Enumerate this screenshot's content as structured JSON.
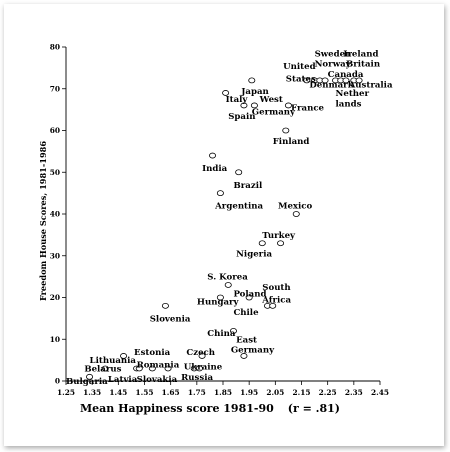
{
  "chart_data": {
    "type": "scatter",
    "xlabel": "Mean Happiness score 1981-90",
    "xlabel_suffix": "(r = .81)",
    "ylabel": "Freedom House Scores, 1981-1986",
    "xlim": [
      1.25,
      2.45
    ],
    "ylim": [
      0,
      80
    ],
    "xticks": [
      "1.25",
      "1.35",
      "1.45",
      "1.55",
      "1.65",
      "1.75",
      "1.85",
      "1.95",
      "2.05",
      "2.15",
      "2.25",
      "2.35",
      "2.45"
    ],
    "yticks": [
      "0",
      "10",
      "20",
      "30",
      "40",
      "50",
      "60",
      "70",
      "80"
    ],
    "points": [
      {
        "x": 1.34,
        "y": 1
      },
      {
        "x": 1.4,
        "y": 3
      },
      {
        "x": 1.47,
        "y": 6
      },
      {
        "x": 1.52,
        "y": 3
      },
      {
        "x": 1.53,
        "y": 3
      },
      {
        "x": 1.58,
        "y": 3
      },
      {
        "x": 1.64,
        "y": 3
      },
      {
        "x": 1.63,
        "y": 18
      },
      {
        "x": 1.74,
        "y": 3
      },
      {
        "x": 1.76,
        "y": 3
      },
      {
        "x": 1.77,
        "y": 6
      },
      {
        "x": 1.81,
        "y": 54
      },
      {
        "x": 1.84,
        "y": 20
      },
      {
        "x": 1.84,
        "y": 45
      },
      {
        "x": 1.86,
        "y": 69
      },
      {
        "x": 1.87,
        "y": 23
      },
      {
        "x": 1.89,
        "y": 12
      },
      {
        "x": 1.91,
        "y": 50
      },
      {
        "x": 1.93,
        "y": 6
      },
      {
        "x": 1.93,
        "y": 66
      },
      {
        "x": 1.95,
        "y": 20
      },
      {
        "x": 1.96,
        "y": 72
      },
      {
        "x": 1.97,
        "y": 66
      },
      {
        "x": 2.0,
        "y": 33
      },
      {
        "x": 2.02,
        "y": 18
      },
      {
        "x": 2.04,
        "y": 18
      },
      {
        "x": 2.07,
        "y": 33
      },
      {
        "x": 2.09,
        "y": 60
      },
      {
        "x": 2.1,
        "y": 66
      },
      {
        "x": 2.13,
        "y": 40
      },
      {
        "x": 2.17,
        "y": 72
      },
      {
        "x": 2.2,
        "y": 72
      },
      {
        "x": 2.22,
        "y": 72
      },
      {
        "x": 2.24,
        "y": 72
      },
      {
        "x": 2.28,
        "y": 72
      },
      {
        "x": 2.3,
        "y": 72
      },
      {
        "x": 2.32,
        "y": 72
      },
      {
        "x": 2.35,
        "y": 72
      },
      {
        "x": 2.37,
        "y": 72
      }
    ],
    "annotations": [
      {
        "text": "Bulgaria",
        "x": 1.25,
        "y": 0
      },
      {
        "text": "Belarus",
        "x": 1.32,
        "y": 3
      },
      {
        "text": "Latvia",
        "x": 1.41,
        "y": 0.5
      },
      {
        "text": "Lithuania",
        "x": 1.34,
        "y": 5
      },
      {
        "text": "Estonia",
        "x": 1.51,
        "y": 7
      },
      {
        "text": "Romania",
        "x": 1.52,
        "y": 4
      },
      {
        "text": "Slovakia",
        "x": 1.52,
        "y": 0.5
      },
      {
        "text": "Czech",
        "x": 1.71,
        "y": 7
      },
      {
        "text": "Ukraine",
        "x": 1.7,
        "y": 3.5
      },
      {
        "text": "Russia",
        "x": 1.69,
        "y": 1
      },
      {
        "text": "Slovenia",
        "x": 1.57,
        "y": 15
      },
      {
        "text": "China",
        "x": 1.79,
        "y": 11.5
      },
      {
        "text": "East",
        "x": 1.9,
        "y": 10
      },
      {
        "text": "Germany",
        "x": 1.88,
        "y": 7.5
      },
      {
        "text": "Hungary",
        "x": 1.75,
        "y": 19
      },
      {
        "text": "S. Korea",
        "x": 1.79,
        "y": 25
      },
      {
        "text": "Poland",
        "x": 1.89,
        "y": 21
      },
      {
        "text": "South",
        "x": 2.0,
        "y": 22.5
      },
      {
        "text": "Africa",
        "x": 2.0,
        "y": 19.5
      },
      {
        "text": "Chile",
        "x": 1.89,
        "y": 16.5
      },
      {
        "text": "Nigeria",
        "x": 1.9,
        "y": 30.5
      },
      {
        "text": "Turkey",
        "x": 2.0,
        "y": 35
      },
      {
        "text": "Mexico",
        "x": 2.06,
        "y": 42
      },
      {
        "text": "Argentina",
        "x": 1.82,
        "y": 42
      },
      {
        "text": "Brazil",
        "x": 1.89,
        "y": 47
      },
      {
        "text": "India",
        "x": 1.77,
        "y": 51
      },
      {
        "text": "Finland",
        "x": 2.04,
        "y": 57.5
      },
      {
        "text": "Spain",
        "x": 1.87,
        "y": 63.5
      },
      {
        "text": "Germany",
        "x": 1.96,
        "y": 64.5
      },
      {
        "text": "West",
        "x": 1.99,
        "y": 67.5
      },
      {
        "text": "France",
        "x": 2.11,
        "y": 65.5
      },
      {
        "text": "Italy",
        "x": 1.86,
        "y": 67.5
      },
      {
        "text": "Japan",
        "x": 1.92,
        "y": 69.5
      },
      {
        "text": "United",
        "x": 2.08,
        "y": 75.5
      },
      {
        "text": "States",
        "x": 2.09,
        "y": 72.5
      },
      {
        "text": "Sweden",
        "x": 2.2,
        "y": 78.5
      },
      {
        "text": "Norway",
        "x": 2.2,
        "y": 76
      },
      {
        "text": "Ireland",
        "x": 2.31,
        "y": 78.5
      },
      {
        "text": "Britain",
        "x": 2.32,
        "y": 76
      },
      {
        "text": "Canada",
        "x": 2.25,
        "y": 73.5
      },
      {
        "text": "Denmark",
        "x": 2.18,
        "y": 71
      },
      {
        "text": "Australia",
        "x": 2.33,
        "y": 71
      },
      {
        "text": "Nether",
        "x": 2.28,
        "y": 69
      },
      {
        "text": "lands",
        "x": 2.28,
        "y": 66.5
      }
    ]
  }
}
